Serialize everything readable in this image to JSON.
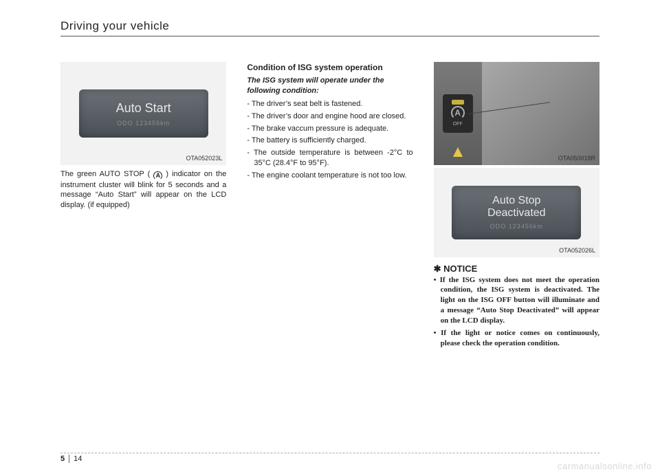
{
  "header": {
    "title": "Driving your vehicle"
  },
  "col1": {
    "lcd_main": "Auto Start",
    "lcd_sub": "ODO 123456km",
    "img_ref": "OTA052023L",
    "body": "The green AUTO STOP ( ",
    "body2": " ) indicator on the instrument cluster will blink for 5 seconds and a message “Auto Start” will appear on the LCD display. (if equipped)",
    "icon_letter": "A"
  },
  "col2": {
    "heading": "Condition of ISG system operation",
    "sub": "The ISG system will operate under the following condition:",
    "items": [
      "- The driver’s seat belt is fastened.",
      "- The driver’s door and engine hood are closed.",
      "- The brake vaccum pressure is adequate.",
      "- The battery is sufficiently charged.",
      "- The outside temperature is between -2°C to 35°C (28.4°F to 95°F).",
      "- The engine coolant temperature is not too low."
    ]
  },
  "col3": {
    "img1_ref": "OTA050018R",
    "btn_a": "A",
    "btn_off": "OFF",
    "lcd_main": "Auto Stop\nDeactivated",
    "lcd_sub": "ODO 123456km",
    "img2_ref": "OTA052026L",
    "notice_title": "✱ NOTICE",
    "notice_items": [
      "• If the ISG system does not meet the operation condition, the ISG system is deactivated. The light on the ISG OFF button will illuminate and a message “Auto Stop Deactivated” will appear on the LCD display.",
      "• If the light or notice comes on continuously, please check the operation condition."
    ]
  },
  "footer": {
    "chapter": "5",
    "page": "14"
  },
  "watermark": "carmanualsonline.info"
}
